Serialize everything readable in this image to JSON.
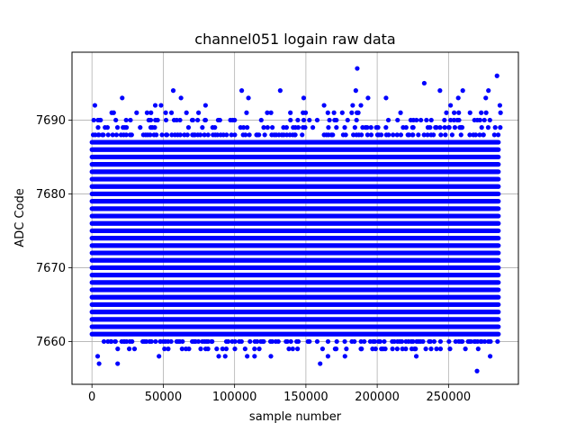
{
  "chart_data": {
    "type": "scatter",
    "title": "channel051 logain raw data",
    "xlabel": "sample number",
    "ylabel": "ADC Code",
    "xlim": [
      -14000,
      299000
    ],
    "ylim": [
      7654.2,
      7699.2
    ],
    "xticks": [
      0,
      50000,
      100000,
      150000,
      200000,
      250000
    ],
    "xtick_labels": [
      "0",
      "50000",
      "100000",
      "150000",
      "200000",
      "250000"
    ],
    "yticks": [
      7660,
      7670,
      7680,
      7690
    ],
    "ytick_labels": [
      "7660",
      "7670",
      "7680",
      "7690"
    ],
    "grid": true,
    "marker_color": "#0000ff",
    "series": [
      {
        "x_range": [
          0,
          285000
        ],
        "dense_band": [
          7661,
          7687
        ],
        "sparse_levels": [
          7658,
          7659,
          7660,
          7688,
          7689,
          7690,
          7691,
          7692,
          7693
        ],
        "outliers": [
          {
            "x": 186000,
            "y": 7697
          },
          {
            "x": 284000,
            "y": 7696
          },
          {
            "x": 233000,
            "y": 7695
          },
          {
            "x": 57000,
            "y": 7694
          },
          {
            "x": 105000,
            "y": 7694
          },
          {
            "x": 132000,
            "y": 7694
          },
          {
            "x": 185000,
            "y": 7694
          },
          {
            "x": 244000,
            "y": 7694
          },
          {
            "x": 260000,
            "y": 7694
          },
          {
            "x": 278000,
            "y": 7694
          },
          {
            "x": 4000,
            "y": 7658
          },
          {
            "x": 47000,
            "y": 7658
          },
          {
            "x": 114000,
            "y": 7658
          },
          {
            "x": 18000,
            "y": 7657
          },
          {
            "x": 5000,
            "y": 7657
          },
          {
            "x": 160000,
            "y": 7657
          },
          {
            "x": 270000,
            "y": 7656
          }
        ]
      }
    ]
  }
}
